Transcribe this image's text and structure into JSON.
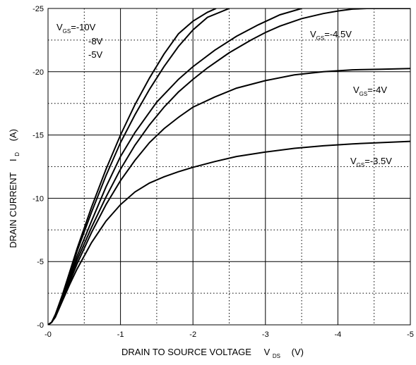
{
  "chart_data": {
    "type": "line",
    "xlabel": "DRAIN TO SOURCE VOLTAGE",
    "xlabel_sub": "V",
    "xlabel_subscript": "DS",
    "xlabel_unit": "(V)",
    "ylabel": "DRAIN CURRENT",
    "ylabel_sub": "I",
    "ylabel_subscript": "D",
    "ylabel_unit": "(A)",
    "xlim": [
      0,
      -5
    ],
    "ylim": [
      0,
      -25
    ],
    "x_ticks": [
      "-0",
      "-1",
      "-2",
      "-3",
      "-4",
      "-5"
    ],
    "y_ticks": [
      "-0",
      "-5",
      "-10",
      "-15",
      "-20",
      "-25"
    ],
    "grid": true,
    "series": [
      {
        "name": "VGS=-10V",
        "x": [
          0,
          -0.05,
          -0.1,
          -0.2,
          -0.3,
          -0.4,
          -0.6,
          -0.8,
          -1.0,
          -1.2,
          -1.4,
          -1.6,
          -1.8,
          -2.0,
          -2.2,
          -2.32
        ],
        "y": [
          0,
          -0.2,
          -0.8,
          -2.4,
          -4.2,
          -6.0,
          -9.3,
          -12.3,
          -15.0,
          -17.4,
          -19.5,
          -21.4,
          -23.0,
          -24.0,
          -24.7,
          -25.0
        ]
      },
      {
        "name": "-8V",
        "x": [
          0,
          -0.05,
          -0.1,
          -0.2,
          -0.3,
          -0.4,
          -0.6,
          -0.8,
          -1.0,
          -1.2,
          -1.4,
          -1.6,
          -1.8,
          -2.0,
          -2.2,
          -2.5
        ],
        "y": [
          0,
          -0.2,
          -0.8,
          -2.3,
          -4.0,
          -5.8,
          -8.9,
          -11.8,
          -14.4,
          -16.6,
          -18.6,
          -20.4,
          -22.0,
          -23.3,
          -24.3,
          -25.0
        ]
      },
      {
        "name": "-5V",
        "x": [
          0,
          -0.05,
          -0.1,
          -0.2,
          -0.3,
          -0.4,
          -0.6,
          -0.8,
          -1.0,
          -1.2,
          -1.5,
          -1.8,
          -2.0,
          -2.3,
          -2.6,
          -2.9,
          -3.2,
          -3.5
        ],
        "y": [
          0,
          -0.2,
          -0.7,
          -2.2,
          -3.8,
          -5.4,
          -8.2,
          -10.9,
          -13.3,
          -15.2,
          -17.6,
          -19.4,
          -20.4,
          -21.7,
          -22.8,
          -23.7,
          -24.5,
          -25.0
        ]
      },
      {
        "name": "VGS=-4.5V",
        "x": [
          0,
          -0.05,
          -0.1,
          -0.2,
          -0.3,
          -0.4,
          -0.6,
          -0.8,
          -1.0,
          -1.2,
          -1.4,
          -1.6,
          -1.8,
          -2.0,
          -2.2,
          -2.5,
          -2.8,
          -3.0,
          -3.2,
          -3.5,
          -3.8,
          -4.0,
          -4.2,
          -4.4,
          -4.6,
          -5.0
        ],
        "y": [
          0,
          -0.2,
          -0.7,
          -2.1,
          -3.6,
          -5.1,
          -7.7,
          -10.1,
          -12.3,
          -14.2,
          -15.8,
          -17.2,
          -18.4,
          -19.4,
          -20.3,
          -21.5,
          -22.5,
          -23.1,
          -23.6,
          -24.2,
          -24.6,
          -24.8,
          -24.95,
          -25.0,
          -25.0,
          -25.0
        ]
      },
      {
        "name": "VGS=-4V",
        "x": [
          0,
          -0.05,
          -0.1,
          -0.2,
          -0.3,
          -0.4,
          -0.6,
          -0.8,
          -1.0,
          -1.2,
          -1.4,
          -1.6,
          -1.8,
          -2.0,
          -2.3,
          -2.6,
          -3.0,
          -3.4,
          -3.8,
          -4.2,
          -4.6,
          -5.0
        ],
        "y": [
          0,
          -0.2,
          -0.7,
          -2.0,
          -3.4,
          -4.8,
          -7.3,
          -9.5,
          -11.4,
          -13.0,
          -14.4,
          -15.5,
          -16.4,
          -17.2,
          -18.0,
          -18.7,
          -19.3,
          -19.75,
          -20.0,
          -20.15,
          -20.2,
          -20.25
        ]
      },
      {
        "name": "VGS=-3.5V",
        "x": [
          0,
          -0.05,
          -0.1,
          -0.2,
          -0.3,
          -0.4,
          -0.6,
          -0.8,
          -1.0,
          -1.2,
          -1.4,
          -1.6,
          -1.8,
          -2.0,
          -2.3,
          -2.6,
          -3.0,
          -3.4,
          -3.8,
          -4.2,
          -4.6,
          -5.0
        ],
        "y": [
          0,
          -0.2,
          -0.6,
          -1.9,
          -3.2,
          -4.4,
          -6.5,
          -8.2,
          -9.5,
          -10.5,
          -11.2,
          -11.7,
          -12.1,
          -12.45,
          -12.9,
          -13.3,
          -13.65,
          -13.95,
          -14.15,
          -14.3,
          -14.4,
          -14.5
        ]
      }
    ],
    "annotations": [
      {
        "id": "a10",
        "prefix": "V",
        "sub": "GS",
        "text": "=-10V"
      },
      {
        "id": "a8",
        "text": "-8V"
      },
      {
        "id": "a5",
        "text": "-5V"
      },
      {
        "id": "a45",
        "prefix": "V",
        "sub": "GS",
        "text": "=-4.5V"
      },
      {
        "id": "a4",
        "prefix": "V",
        "sub": "GS",
        "text": "=-4V"
      },
      {
        "id": "a35",
        "prefix": "V",
        "sub": "GS",
        "text": "=-3.5V"
      }
    ]
  }
}
